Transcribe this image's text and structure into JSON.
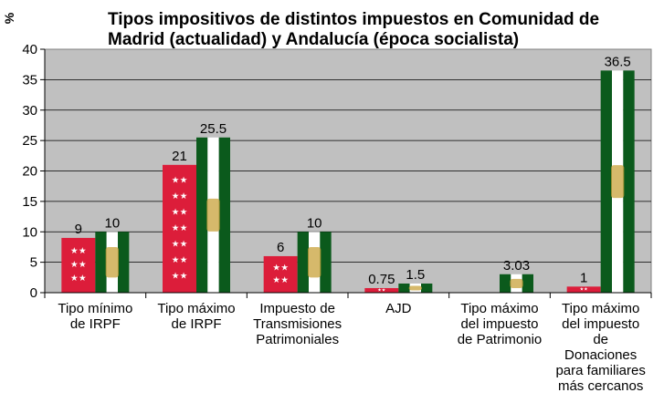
{
  "chart_data": {
    "type": "bar",
    "title": "Tipos impositivos de distintos impuestos en Comunidad de Madrid (actualidad) y Andalucía (época socialista)",
    "ylabel": "%",
    "xlabel": "",
    "ylim": [
      0,
      40
    ],
    "yticks": [
      0,
      5,
      10,
      15,
      20,
      25,
      30,
      35,
      40
    ],
    "grid": true,
    "categories": [
      [
        "Tipo mínimo",
        "de IRPF"
      ],
      [
        "Tipo máximo",
        "de IRPF"
      ],
      [
        "Impuesto de",
        "Transmisiones",
        "Patrimoniales"
      ],
      [
        "AJD"
      ],
      [
        "Tipo máximo",
        "del impuesto",
        "de Patrimonio"
      ],
      [
        "Tipo máximo",
        "del impuesto",
        "de",
        "Donaciones",
        "para familiares",
        "más cercanos"
      ]
    ],
    "series": [
      {
        "name": "Comunidad de Madrid",
        "values": [
          9,
          21,
          6,
          0.75,
          null,
          1
        ],
        "labels": [
          "9",
          "21",
          "6",
          "0.75",
          "",
          "1"
        ],
        "color": "#dc1d3a"
      },
      {
        "name": "Andalucía",
        "values": [
          10,
          25.5,
          10,
          1.5,
          3.03,
          36.5
        ],
        "labels": [
          "10",
          "25.5",
          "10",
          "1.5",
          "3.03",
          "36.5"
        ],
        "color": "#0b5a1c"
      }
    ]
  }
}
